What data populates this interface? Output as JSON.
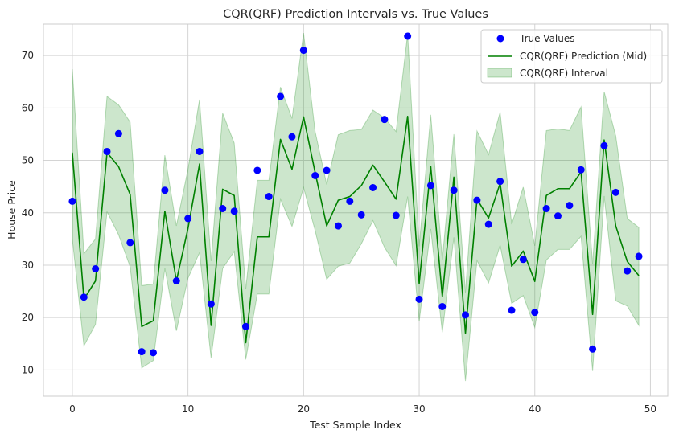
{
  "chart_data": {
    "type": "line",
    "title": "CQR(QRF) Prediction Intervals vs. True Values",
    "xlabel": "Test Sample Index",
    "ylabel": "House Price",
    "xlim": [
      -2.5,
      51.5
    ],
    "ylim": [
      5,
      76
    ],
    "xticks": [
      0,
      10,
      20,
      30,
      40,
      50
    ],
    "yticks": [
      10,
      20,
      30,
      40,
      50,
      60,
      70
    ],
    "grid": true,
    "legend_position": "top-right",
    "x": [
      0,
      1,
      2,
      3,
      4,
      5,
      6,
      7,
      8,
      9,
      10,
      11,
      12,
      13,
      14,
      15,
      16,
      17,
      18,
      19,
      20,
      21,
      22,
      23,
      24,
      25,
      26,
      27,
      28,
      29,
      30,
      31,
      32,
      33,
      34,
      35,
      36,
      37,
      38,
      39,
      40,
      41,
      42,
      43,
      44,
      45,
      46,
      47,
      48,
      49
    ],
    "series": [
      {
        "name": "True Values",
        "kind": "scatter",
        "color": "#0000ff",
        "values": [
          42.2,
          23.9,
          29.3,
          51.7,
          55.1,
          34.3,
          13.5,
          13.3,
          44.3,
          27.0,
          38.9,
          51.7,
          22.6,
          40.8,
          40.3,
          18.3,
          48.1,
          43.1,
          62.2,
          54.5,
          71.0,
          47.1,
          48.1,
          37.5,
          42.2,
          39.6,
          44.8,
          57.8,
          39.5,
          73.7,
          23.5,
          45.2,
          22.1,
          44.3,
          20.5,
          42.4,
          37.8,
          46.0,
          21.4,
          31.1,
          21.0,
          40.8,
          39.4,
          41.4,
          48.2,
          14.0,
          52.8,
          43.9,
          28.9,
          31.7
        ]
      },
      {
        "name": "CQR(QRF) Prediction (Mid)",
        "kind": "line",
        "color": "#008000",
        "values": [
          51.5,
          23.5,
          27.0,
          51.5,
          48.8,
          43.5,
          18.3,
          19.4,
          40.3,
          27.0,
          37.0,
          49.3,
          18.5,
          44.5,
          43.3,
          15.2,
          35.4,
          35.4,
          54.0,
          48.3,
          58.3,
          47.7,
          37.5,
          42.4,
          43.1,
          45.2,
          49.1,
          45.9,
          42.6,
          58.4,
          26.5,
          48.8,
          24.0,
          46.8,
          17.0,
          42.6,
          39.0,
          45.6,
          29.8,
          32.7,
          26.9,
          43.3,
          44.6,
          44.6,
          47.8,
          20.6,
          53.9,
          37.5,
          30.7,
          28.0
        ]
      },
      {
        "name": "CQR(QRF) Interval",
        "kind": "area",
        "color": "#008000",
        "lower": [
          35.0,
          14.6,
          18.7,
          40.2,
          35.8,
          29.7,
          10.4,
          11.8,
          29.4,
          17.5,
          27.5,
          32.4,
          12.3,
          29.4,
          32.6,
          12.0,
          24.5,
          24.5,
          42.6,
          37.4,
          44.8,
          36.6,
          27.3,
          29.8,
          30.4,
          34.1,
          38.5,
          33.4,
          29.9,
          43.1,
          19.3,
          36.9,
          17.2,
          35.3,
          7.9,
          30.9,
          26.6,
          33.8,
          22.7,
          24.2,
          18.1,
          31.0,
          33.0,
          33.0,
          35.5,
          9.8,
          43.2,
          23.2,
          22.2,
          18.5
        ],
        "upper": [
          67.4,
          32.2,
          35.0,
          62.2,
          60.6,
          57.3,
          26.1,
          26.4,
          51.0,
          37.5,
          48.3,
          61.6,
          30.8,
          59.0,
          53.3,
          25.5,
          46.2,
          46.2,
          64.0,
          58.0,
          74.3,
          55.5,
          45.4,
          54.9,
          55.7,
          55.9,
          59.6,
          58.1,
          55.5,
          74.1,
          33.6,
          58.7,
          31.0,
          55.0,
          24.8,
          55.6,
          51.1,
          59.2,
          37.8,
          44.9,
          33.7,
          55.7,
          56.0,
          55.7,
          60.2,
          30.2,
          63.1,
          54.7,
          38.9,
          37.2
        ]
      }
    ]
  }
}
